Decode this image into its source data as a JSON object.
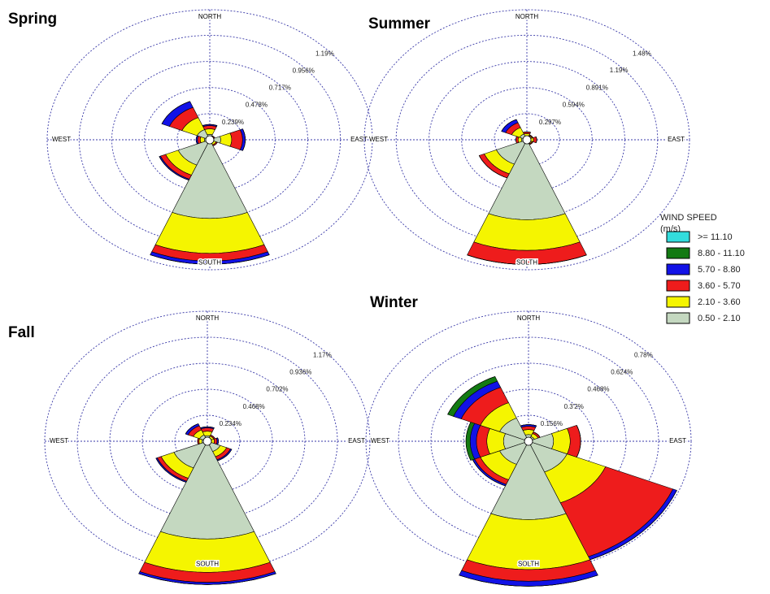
{
  "chart_data": [
    {
      "type": "windrose",
      "title": "Spring",
      "categories": [
        "NORTH",
        null,
        "EAST",
        null,
        "SOUTH",
        null,
        "WEST",
        null
      ],
      "rlim": [
        0,
        1.19
      ],
      "rticks": [
        {
          "value": 0.239,
          "label": "0.239%"
        },
        {
          "value": 0.478,
          "label": "0.478%"
        },
        {
          "value": 0.717,
          "label": "0.717%"
        },
        {
          "value": 0.956,
          "label": "0.956%"
        },
        {
          "value": 1.19,
          "label": "1.19%"
        }
      ],
      "series": [
        {
          "values": [
            0,
            0,
            0,
            0,
            0,
            0,
            0,
            0
          ]
        },
        {
          "values": [
            0,
            0,
            0,
            0,
            0,
            0,
            0,
            0
          ]
        },
        {
          "values": [
            0.01,
            0,
            0.02,
            0,
            0.03,
            0.01,
            0.01,
            0.06
          ]
        },
        {
          "values": [
            0.03,
            0.01,
            0.08,
            0.01,
            0.07,
            0.04,
            0.02,
            0.1
          ]
        },
        {
          "values": [
            0.05,
            0.01,
            0.08,
            0.02,
            0.32,
            0.1,
            0.03,
            0.12
          ]
        },
        {
          "values": [
            0.05,
            0.02,
            0.08,
            0.03,
            0.72,
            0.25,
            0.04,
            0.1
          ]
        }
      ]
    },
    {
      "type": "windrose",
      "title": "Summer",
      "categories": [
        "NORTH",
        null,
        "EAST",
        null,
        "SOLTH",
        null,
        "WEST",
        null
      ],
      "rlim": [
        0,
        1.48
      ],
      "rticks": [
        {
          "value": 0.297,
          "label": "0.297%"
        },
        {
          "value": 0.594,
          "label": "0.594%"
        },
        {
          "value": 0.891,
          "label": "0.891%"
        },
        {
          "value": 1.19,
          "label": "1.19%"
        },
        {
          "value": 1.48,
          "label": "1.48%"
        }
      ],
      "series": [
        {
          "values": [
            0,
            0,
            0,
            0,
            0,
            0,
            0,
            0
          ]
        },
        {
          "values": [
            0,
            0,
            0,
            0,
            0,
            0,
            0,
            0
          ]
        },
        {
          "values": [
            0,
            0,
            0,
            0,
            0,
            0,
            0,
            0.04
          ]
        },
        {
          "values": [
            0.02,
            0.01,
            0.03,
            0.01,
            0.16,
            0.05,
            0.02,
            0.06
          ]
        },
        {
          "values": [
            0.03,
            0.02,
            0.03,
            0.02,
            0.35,
            0.12,
            0.03,
            0.08
          ]
        },
        {
          "values": [
            0.04,
            0.03,
            0.03,
            0.03,
            0.91,
            0.3,
            0.05,
            0.07
          ]
        }
      ]
    },
    {
      "type": "windrose",
      "title": "Fall",
      "categories": [
        "NORTH",
        null,
        "EAST",
        null,
        "SOUTH",
        null,
        "WEST",
        null
      ],
      "rlim": [
        0,
        1.17
      ],
      "rticks": [
        {
          "value": 0.234,
          "label": "0.234%"
        },
        {
          "value": 0.468,
          "label": "0.468%"
        },
        {
          "value": 0.702,
          "label": "0.702%"
        },
        {
          "value": 0.936,
          "label": "0.936%"
        },
        {
          "value": 1.17,
          "label": "1.17%"
        }
      ],
      "series": [
        {
          "values": [
            0,
            0,
            0,
            0,
            0,
            0,
            0,
            0
          ]
        },
        {
          "values": [
            0,
            0,
            0,
            0,
            0,
            0,
            0,
            0
          ]
        },
        {
          "values": [
            0.01,
            0,
            0.01,
            0.01,
            0.02,
            0.01,
            0,
            0.02
          ]
        },
        {
          "values": [
            0.03,
            0.01,
            0.02,
            0.03,
            0.09,
            0.03,
            0.01,
            0.04
          ]
        },
        {
          "values": [
            0.04,
            0.02,
            0.02,
            0.05,
            0.3,
            0.1,
            0.02,
            0.05
          ]
        },
        {
          "values": [
            0.05,
            0.03,
            0.03,
            0.1,
            0.88,
            0.26,
            0.04,
            0.06
          ]
        }
      ]
    },
    {
      "type": "windrose",
      "title": "Winter",
      "categories": [
        "NORTH",
        null,
        "EAST",
        null,
        "SOLTH",
        null,
        "WEST",
        null
      ],
      "rlim": [
        0,
        0.78
      ],
      "rticks": [
        {
          "value": 0.156,
          "label": "0.156%"
        },
        {
          "value": 0.312,
          "label": "0.3'2%"
        },
        {
          "value": 0.468,
          "label": "0.468%"
        },
        {
          "value": 0.624,
          "label": "0.624%"
        },
        {
          "value": 0.78,
          "label": "0.78%"
        }
      ],
      "series": [
        {
          "values": [
            0,
            0,
            0,
            0,
            0,
            0,
            0,
            0
          ]
        },
        {
          "values": [
            0,
            0,
            0,
            0,
            0,
            0,
            0.02,
            0.03
          ]
        },
        {
          "values": [
            0.01,
            0,
            0,
            0.02,
            0.03,
            0.01,
            0.03,
            0.04
          ]
        },
        {
          "values": [
            0.02,
            0.01,
            0.05,
            0.35,
            0.07,
            0.03,
            0.05,
            0.1
          ]
        },
        {
          "values": [
            0.03,
            0.02,
            0.08,
            0.2,
            0.3,
            0.1,
            0.08,
            0.1
          ]
        },
        {
          "values": [
            0.04,
            0.03,
            0.12,
            0.2,
            0.47,
            0.15,
            0.12,
            0.15
          ]
        }
      ]
    }
  ],
  "legend": {
    "title": "WIND SPEED",
    "subtitle": "(m/s)",
    "items": [
      {
        "name": ">= 11.10",
        "color": "#33dddd"
      },
      {
        "name": "8.80 - 11.10",
        "color": "#137a13"
      },
      {
        "name": "5.70 - 8.80",
        "color": "#1212e6"
      },
      {
        "name": "3.60 - 5.70",
        "color": "#ee1c1c"
      },
      {
        "name": "2.10 - 3.60",
        "color": "#f5f500"
      },
      {
        "name": "0.50 - 2.10",
        "color": "#c4d8c0"
      }
    ]
  }
}
